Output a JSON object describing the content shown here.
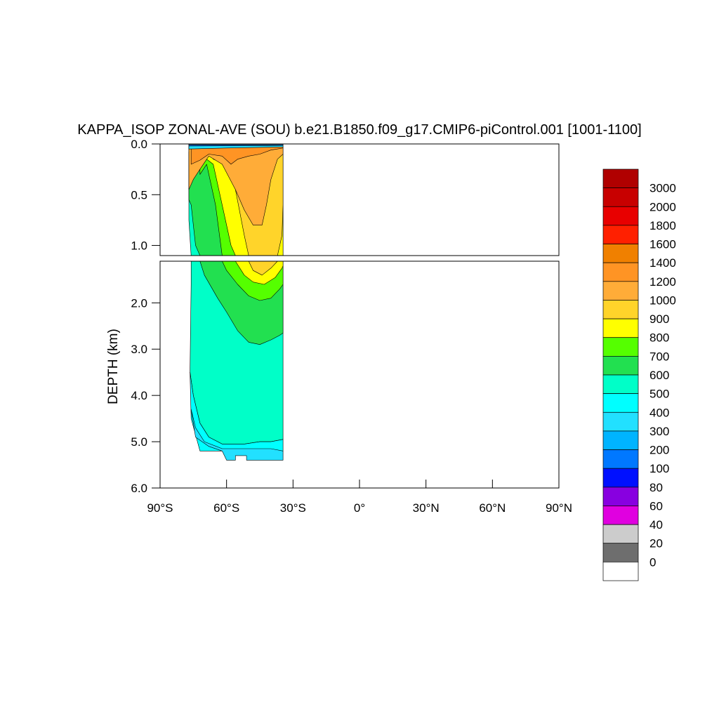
{
  "chart_data": {
    "type": "heatmap",
    "subtype": "filled-contour depth-latitude section",
    "title": "KAPPA_ISOP ZONAL-AVE (SOU) b.e21.B1850.f09_g17.CMIP6-piControl.001 [1001-1100]",
    "ylabel": "DEPTH (km)",
    "xlabel": "",
    "x_ticks": [
      "90°S",
      "60°S",
      "30°S",
      "0°",
      "30°N",
      "60°N",
      "90°N"
    ],
    "x_tick_values": [
      -90,
      -60,
      -30,
      0,
      30,
      60,
      90
    ],
    "xlim": [
      -90,
      90
    ],
    "panels": [
      {
        "name": "upper",
        "ylim": [
          0,
          1.1
        ],
        "y_ticks": [
          "0.0",
          "0.5",
          "1.0"
        ],
        "y_tick_values": [
          0,
          0.5,
          1.0
        ]
      },
      {
        "name": "lower",
        "ylim": [
          1.1,
          6.0
        ],
        "y_ticks": [
          "2.0",
          "3.0",
          "4.0",
          "5.0",
          "6.0"
        ],
        "y_tick_values": [
          2,
          3,
          4,
          5,
          6
        ]
      }
    ],
    "data_extent": {
      "lat_min": -77,
      "lat_max": -33,
      "max_depth_km": 5.4
    },
    "colorbar": {
      "labels": [
        "3000",
        "2000",
        "1800",
        "1600",
        "1400",
        "1200",
        "1000",
        "900",
        "800",
        "700",
        "600",
        "500",
        "400",
        "300",
        "200",
        "100",
        "80",
        "60",
        "40",
        "20",
        "0"
      ],
      "colors": [
        "#b00000",
        "#c80000",
        "#e80000",
        "#ff2000",
        "#f08000",
        "#ff9424",
        "#ffac38",
        "#ffd42a",
        "#ffff00",
        "#55ff00",
        "#22e050",
        "#00ffc8",
        "#00ffff",
        "#22e0ff",
        "#00b4ff",
        "#0078ff",
        "#0010ff",
        "#8800e0",
        "#e000e0",
        "#cccccc",
        "#6e6e6e",
        "#ffffff"
      ]
    },
    "regions": [
      {
        "level": 500,
        "color": "#00ffc8",
        "poly": [
          [
            -77,
            0.75
          ],
          [
            -76,
            1.1
          ],
          [
            -76,
            1.6
          ],
          [
            -76.5,
            3.5
          ],
          [
            -75,
            4.0
          ],
          [
            -72,
            4.6
          ],
          [
            -68,
            4.9
          ],
          [
            -62,
            5.05
          ],
          [
            -52,
            5.05
          ],
          [
            -45,
            5.0
          ],
          [
            -40,
            5.0
          ],
          [
            -34.5,
            4.95
          ],
          [
            -34.5,
            1.1
          ],
          [
            -34.5,
            0.03
          ],
          [
            -77,
            0.03
          ]
        ]
      },
      {
        "level": 400,
        "color": "#00ffff",
        "poly": [
          [
            -76.5,
            3.5
          ],
          [
            -75,
            4.0
          ],
          [
            -72,
            4.6
          ],
          [
            -68,
            4.9
          ],
          [
            -62,
            5.05
          ],
          [
            -52,
            5.05
          ],
          [
            -45,
            5.0
          ],
          [
            -40,
            5.0
          ],
          [
            -34.5,
            4.95
          ],
          [
            -34.5,
            5.2
          ],
          [
            -72,
            5.2
          ],
          [
            -76,
            4.5
          ]
        ]
      },
      {
        "level": 300,
        "color": "#22e0ff",
        "poly": [
          [
            -76,
            4.3
          ],
          [
            -74,
            4.9
          ],
          [
            -68,
            5.1
          ],
          [
            -62,
            5.2
          ],
          [
            -60,
            5.4
          ],
          [
            -56,
            5.4
          ],
          [
            -56,
            5.3
          ],
          [
            -51,
            5.3
          ],
          [
            -51,
            5.4
          ],
          [
            -34.5,
            5.4
          ],
          [
            -34.5,
            5.2
          ],
          [
            -40,
            5.15
          ],
          [
            -50,
            5.15
          ],
          [
            -62,
            5.15
          ],
          [
            -70,
            5.0
          ],
          [
            -74,
            4.7
          ]
        ]
      },
      {
        "level": 700,
        "color": "#22e050",
        "poly": [
          [
            -77,
            0.08
          ],
          [
            -77,
            0.55
          ],
          [
            -76,
            0.6
          ],
          [
            -74,
            1.0
          ],
          [
            -72,
            1.1
          ],
          [
            -70,
            1.4
          ],
          [
            -64,
            1.9
          ],
          [
            -60,
            2.2
          ],
          [
            -55,
            2.6
          ],
          [
            -50,
            2.85
          ],
          [
            -45,
            2.9
          ],
          [
            -40,
            2.8
          ],
          [
            -36,
            2.7
          ],
          [
            -34.5,
            2.65
          ],
          [
            -34.5,
            0.03
          ]
        ]
      },
      {
        "level": 800,
        "color": "#55ff00",
        "poly": [
          [
            -72,
            0.08
          ],
          [
            -72,
            0.3
          ],
          [
            -69,
            0.2
          ],
          [
            -65,
            0.6
          ],
          [
            -62,
            1.1
          ],
          [
            -60,
            1.3
          ],
          [
            -55,
            1.6
          ],
          [
            -50,
            1.85
          ],
          [
            -45,
            1.95
          ],
          [
            -40,
            1.9
          ],
          [
            -36,
            1.7
          ],
          [
            -34.5,
            1.6
          ],
          [
            -34.5,
            0.03
          ]
        ]
      },
      {
        "level": 900,
        "color": "#ffff00",
        "poly": [
          [
            -69,
            0.15
          ],
          [
            -66,
            0.2
          ],
          [
            -62,
            0.6
          ],
          [
            -58,
            1.0
          ],
          [
            -56,
            1.1
          ],
          [
            -52,
            1.4
          ],
          [
            -48,
            1.55
          ],
          [
            -43,
            1.6
          ],
          [
            -38,
            1.45
          ],
          [
            -35,
            1.25
          ],
          [
            -34.5,
            1.2
          ],
          [
            -34.5,
            0.03
          ],
          [
            -69,
            0.03
          ]
        ]
      },
      {
        "level": 1000,
        "color": "#ffd42a",
        "poly": [
          [
            -66,
            0.15
          ],
          [
            -60,
            0.2
          ],
          [
            -56,
            0.45
          ],
          [
            -52,
            0.9
          ],
          [
            -48,
            1.3
          ],
          [
            -44,
            1.4
          ],
          [
            -40,
            1.25
          ],
          [
            -37,
            1.1
          ],
          [
            -35,
            0.9
          ],
          [
            -34.5,
            0.6
          ],
          [
            -34.5,
            0.03
          ],
          [
            -66,
            0.03
          ]
        ]
      },
      {
        "level": 1200,
        "color": "#ffac38",
        "poly": [
          [
            -77,
            0.05
          ],
          [
            -77,
            0.45
          ],
          [
            -75,
            0.35
          ],
          [
            -72,
            0.25
          ],
          [
            -68,
            0.12
          ],
          [
            -62,
            0.2
          ],
          [
            -56,
            0.45
          ],
          [
            -52,
            0.65
          ],
          [
            -48,
            0.8
          ],
          [
            -44,
            0.8
          ],
          [
            -42,
            0.6
          ],
          [
            -40,
            0.35
          ],
          [
            -37,
            0.15
          ],
          [
            -34.5,
            0.1
          ],
          [
            -34.5,
            0.02
          ],
          [
            -77,
            0.02
          ]
        ]
      },
      {
        "level": 1400,
        "color": "#ff9424",
        "poly": [
          [
            -76,
            0.02
          ],
          [
            -76,
            0.2
          ],
          [
            -72,
            0.16
          ],
          [
            -68,
            0.1
          ],
          [
            -62,
            0.12
          ],
          [
            -58,
            0.2
          ],
          [
            -55,
            0.15
          ],
          [
            -50,
            0.12
          ],
          [
            -45,
            0.1
          ],
          [
            -40,
            0.06
          ],
          [
            -34.5,
            0.04
          ],
          [
            -34.5,
            0.01
          ]
        ]
      },
      {
        "level": 300,
        "color": "#22e0ff",
        "poly": [
          [
            -77,
            0.0
          ],
          [
            -34.5,
            0.0
          ],
          [
            -34.5,
            0.03
          ],
          [
            -60,
            0.04
          ],
          [
            -77,
            0.05
          ]
        ]
      },
      {
        "level": 100,
        "color": "#0078ff",
        "poly": [
          [
            -77,
            0.0
          ],
          [
            -34.5,
            0.0
          ],
          [
            -34.5,
            0.015
          ],
          [
            -77,
            0.02
          ]
        ]
      },
      {
        "level": 20,
        "color": "#6e6e6e",
        "poly": [
          [
            -77,
            0.0
          ],
          [
            -34.5,
            0.0
          ],
          [
            -34.5,
            0.008
          ],
          [
            -77,
            0.008
          ]
        ]
      }
    ]
  }
}
